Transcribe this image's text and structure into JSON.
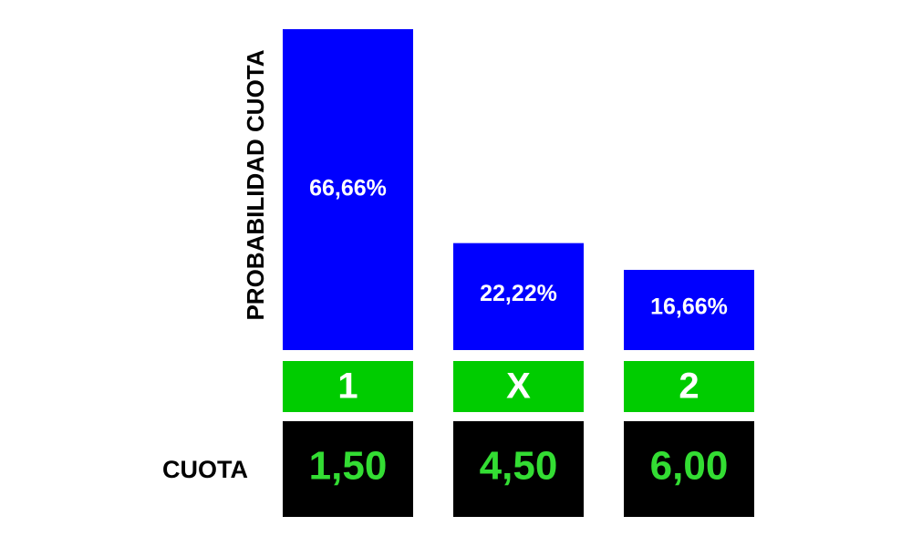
{
  "chart_data": {
    "type": "bar",
    "y_label": "PROBABILIDAD CUOTA",
    "categories": [
      "1",
      "X",
      "2"
    ],
    "values": [
      66.66,
      22.22,
      16.66
    ],
    "value_labels": [
      "66,66%",
      "22,22%",
      "16,66%"
    ],
    "color": "#0000ff",
    "category_color": "#00cc00",
    "odds_label": "CUOTA",
    "odds": [
      "1,50",
      "4,50",
      "6,00"
    ],
    "odds_color": "#33dd33"
  }
}
